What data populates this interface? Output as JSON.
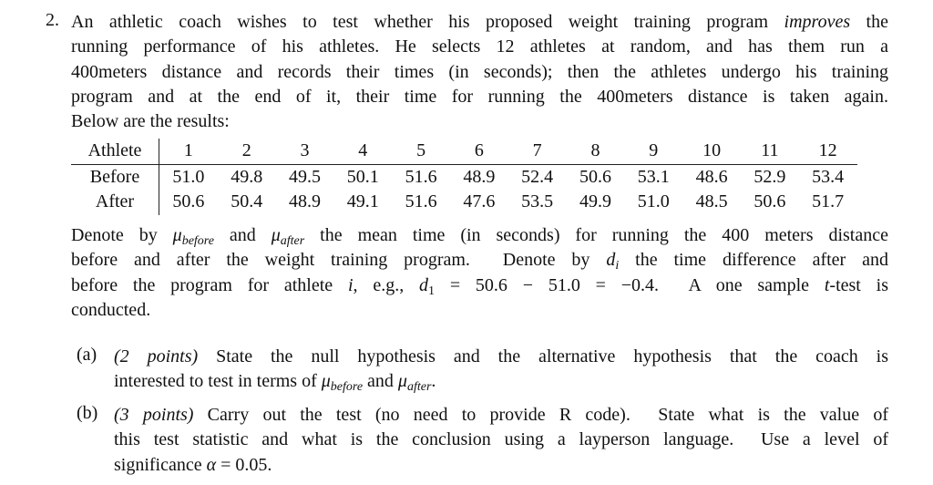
{
  "question": {
    "number": "2.",
    "intro": [
      [
        "An athletic coach wishes to test whether his proposed weight training program ",
        "improves",
        " the"
      ],
      [
        "running performance of his athletes. He selects 12 athletes at random, and has them run a"
      ],
      [
        "400meters distance and records their times (in seconds); then the athletes undergo his training"
      ],
      [
        "program and at the end of it, their time for running the 400meters distance is taken again."
      ],
      [
        "Below are the results:"
      ]
    ],
    "table": {
      "header": [
        "Athlete",
        "1",
        "2",
        "3",
        "4",
        "5",
        "6",
        "7",
        "8",
        "9",
        "10",
        "11",
        "12"
      ],
      "rows": [
        [
          "Before",
          "51.0",
          "49.8",
          "49.5",
          "50.1",
          "51.6",
          "48.9",
          "52.4",
          "50.6",
          "53.1",
          "48.6",
          "52.9",
          "53.4"
        ],
        [
          "After",
          "50.6",
          "50.4",
          "48.9",
          "49.1",
          "51.6",
          "47.6",
          "53.5",
          "49.9",
          "51.0",
          "48.5",
          "50.6",
          "51.7"
        ]
      ]
    },
    "denote": [
      [
        "Denote by ",
        "μ",
        "before",
        " and ",
        "μ",
        "after",
        " the mean time (in seconds) for running the 400 meters distance"
      ],
      [
        "before and after the weight training program.  Denote by ",
        "d",
        "i",
        " the time difference after and"
      ],
      [
        "before the program for athlete ",
        "i",
        ", e.g., ",
        "d",
        "1",
        " = 50.6 − 51.0 = −0.4.  A one sample ",
        "t",
        "-test is"
      ],
      [
        "conducted."
      ]
    ],
    "parts": [
      {
        "label": "(a)",
        "points": "(2 points)",
        "lines": [
          [
            " State the null hypothesis and the alternative hypothesis that the coach is"
          ],
          [
            "interested to test in terms of ",
            "μ",
            "before",
            " and ",
            "μ",
            "after",
            "."
          ]
        ]
      },
      {
        "label": "(b)",
        "points": "(3 points)",
        "lines": [
          [
            " Carry out the test (no need to provide R code).  State what is the value of"
          ],
          [
            "this test statistic and what is the conclusion using a layperson language.  Use a level of"
          ],
          [
            "significance ",
            "α",
            " = 0.05."
          ]
        ]
      }
    ]
  }
}
